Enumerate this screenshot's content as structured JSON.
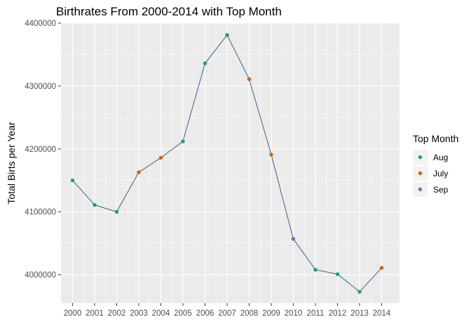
{
  "chart_data": {
    "type": "line",
    "title": "Birthrates From 2000-2014 with Top Month",
    "xlabel": "",
    "ylabel": "Total Birts per Year",
    "x": [
      "2000",
      "2001",
      "2002",
      "2003",
      "2004",
      "2005",
      "2006",
      "2007",
      "2008",
      "2009",
      "2010",
      "2011",
      "2012",
      "2013",
      "2014"
    ],
    "y": [
      4150000,
      4111000,
      4100000,
      4163000,
      4186000,
      4212000,
      4336000,
      4381000,
      4311000,
      4191000,
      4057000,
      4008000,
      4001000,
      3973000,
      4011000
    ],
    "top_month": [
      "Aug",
      "Aug",
      "Aug",
      "July",
      "July",
      "Aug",
      "Aug",
      "Aug",
      "July",
      "July",
      "Sep",
      "Aug",
      "Aug",
      "Aug",
      "July"
    ],
    "ylim": [
      3955000,
      4400000
    ],
    "yticks": [
      4000000,
      4100000,
      4200000,
      4300000,
      4400000
    ],
    "ytick_labels": [
      "4000000",
      "4100000",
      "4200000",
      "4300000",
      "4400000"
    ],
    "line_color": "#3b5f86",
    "panel_background": "#ebebeb",
    "grid": true,
    "legend": {
      "title": "Top Month",
      "placement": "right",
      "entries": [
        {
          "label": "Aug",
          "color": "#1b9e77"
        },
        {
          "label": "July",
          "color": "#d95f02"
        },
        {
          "label": "Sep",
          "color": "#7570b3"
        }
      ]
    }
  }
}
